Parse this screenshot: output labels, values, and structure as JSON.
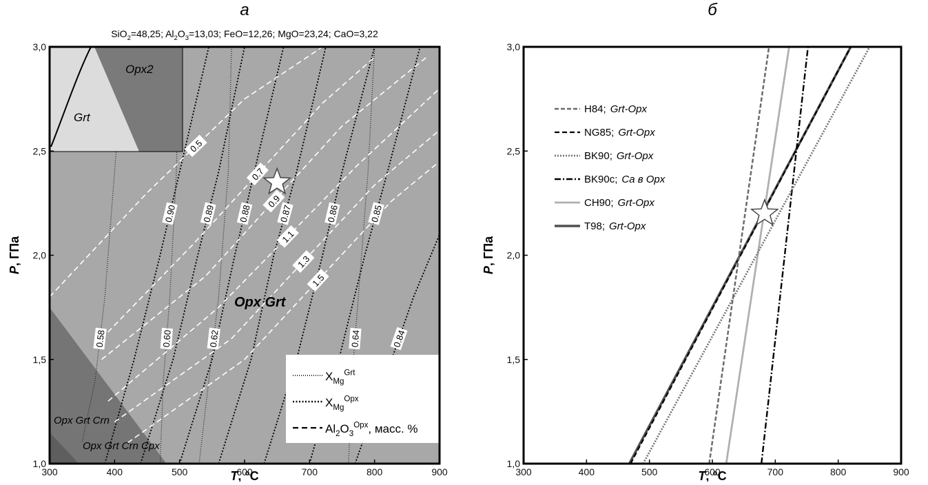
{
  "chart_data": [
    {
      "type": "contour",
      "title": "а",
      "subtitle_parts": [
        {
          "t": "SiO"
        },
        {
          "sub": "2"
        },
        {
          "t": "=48,25; Al"
        },
        {
          "sub": "2"
        },
        {
          "t": "O"
        },
        {
          "sub": "3"
        },
        {
          "t": "=13,03; FeO=12,26; MgO=23,24; CaO=3,22"
        }
      ],
      "x_label": "T",
      "x_label_unit": ", °C",
      "y_label": "P",
      "y_label_unit": ", ГПа",
      "xlim": [
        300,
        900
      ],
      "ylim": [
        1.0,
        3.0
      ],
      "xticks": [
        300,
        400,
        500,
        600,
        700,
        800,
        900
      ],
      "yticks": [
        {
          "value": 1.0,
          "label": "1,0"
        },
        {
          "value": 1.5,
          "label": "1,5"
        },
        {
          "value": 2.0,
          "label": "2,0"
        },
        {
          "value": 2.5,
          "label": "2,5"
        },
        {
          "value": 3.0,
          "label": "3,0"
        }
      ],
      "fields": [
        {
          "name": "Opx Grt",
          "color": "#a8a8a8",
          "x": [
            300,
            900,
            900,
            480,
            300
          ],
          "y": [
            3.0,
            3.0,
            1.0,
            1.0,
            1.75
          ]
        },
        {
          "name": "Opx Grt Crn",
          "color": "#757575",
          "x": [
            300,
            480,
            300
          ],
          "y": [
            1.75,
            1.0,
            1.0
          ]
        },
        {
          "name": "Opx Grt Crn Cpx",
          "color": "#5e5e5e",
          "x": [
            300,
            345,
            300
          ],
          "y": [
            1.15,
            1.0,
            1.0
          ]
        }
      ],
      "inset": {
        "labels": [
          "Grt",
          "Opx2"
        ]
      },
      "groups": [
        {
          "legend": [
            {
              "t": "X"
            },
            {
              "sub": "Mg"
            },
            {
              "sup": "Grt"
            }
          ],
          "color": "#2a2a2a",
          "legend_color": "#2a2a2a",
          "dash": "1 2",
          "width": 1.3,
          "contours": [
            {
              "name": "0.58",
              "x": [
                415,
                400,
                385,
                370,
                350
              ],
              "y": [
                3.0,
                2.4,
                1.8,
                1.4,
                1.1
              ]
            },
            {
              "name": "0.60",
              "x": [
                500,
                495,
                485,
                475,
                470
              ],
              "y": [
                3.0,
                2.4,
                1.8,
                1.4,
                1.0
              ]
            },
            {
              "name": "0.62",
              "x": [
                580,
                575,
                560,
                545,
                530
              ],
              "y": [
                3.0,
                2.4,
                1.8,
                1.4,
                1.0
              ]
            },
            {
              "name": "0.64",
              "x": [
                800,
                790,
                775,
                765,
                760
              ],
              "y": [
                3.0,
                2.4,
                1.8,
                1.4,
                1.0
              ]
            }
          ]
        },
        {
          "legend": [
            {
              "t": "X"
            },
            {
              "sub": "Mg"
            },
            {
              "sup": "Opx"
            }
          ],
          "color": "#000000",
          "legend_color": "#000000",
          "dash": "2 2.5",
          "width": 1.9,
          "contours": [
            {
              "name": "0.90",
              "x": [
                385,
                430,
                470,
                500,
                545
              ],
              "y": [
                1.0,
                1.5,
                2.0,
                2.4,
                3.0
              ]
            },
            {
              "name": "0.89",
              "x": [
                440,
                490,
                528,
                560,
                600
              ],
              "y": [
                1.0,
                1.5,
                2.0,
                2.4,
                3.0
              ]
            },
            {
              "name": "0.88",
              "x": [
                500,
                550,
                585,
                615,
                660
              ],
              "y": [
                1.0,
                1.5,
                2.0,
                2.4,
                3.0
              ]
            },
            {
              "name": "0.87",
              "x": [
                560,
                610,
                645,
                680,
                725
              ],
              "y": [
                1.0,
                1.5,
                2.0,
                2.4,
                3.0
              ]
            },
            {
              "name": "0.86",
              "x": [
                630,
                680,
                720,
                750,
                800
              ],
              "y": [
                1.0,
                1.5,
                2.0,
                2.4,
                3.0
              ]
            },
            {
              "name": "0.85",
              "x": [
                700,
                745,
                785,
                820,
                870
              ],
              "y": [
                1.0,
                1.5,
                2.0,
                2.4,
                3.0
              ]
            },
            {
              "name": "0.84",
              "x": [
                770,
                815,
                860,
                900
              ],
              "y": [
                1.0,
                1.4,
                1.8,
                2.1
              ]
            }
          ]
        },
        {
          "legend": [
            {
              "t": "Al"
            },
            {
              "sub": "2"
            },
            {
              "t": "O"
            },
            {
              "sub": "3"
            },
            {
              "sup": "Opx"
            },
            {
              "t": ", масс. %"
            }
          ],
          "color": "#ffffff",
          "legend_color": "#000000",
          "dash": "8 5",
          "width": 1.6,
          "contours": [
            {
              "name": "0.5",
              "x": [
                300,
                450,
                600,
                720
              ],
              "y": [
                1.8,
                2.3,
                2.75,
                3.0
              ]
            },
            {
              "name": "0.7",
              "x": [
                380,
                520,
                720,
                800
              ],
              "y": [
                1.6,
                2.05,
                2.73,
                2.95
              ]
            },
            {
              "name": "0.9",
              "x": [
                380,
                540,
                750,
                880
              ],
              "y": [
                1.5,
                1.9,
                2.62,
                2.95
              ]
            },
            {
              "name": "1.1",
              "x": [
                390,
                560,
                773,
                900
              ],
              "y": [
                1.3,
                1.75,
                2.43,
                2.8
              ]
            },
            {
              "name": "1.3",
              "x": [
                400,
                580,
                801,
                900
              ],
              "y": [
                1.2,
                1.6,
                2.34,
                2.6
              ]
            },
            {
              "name": "1.5",
              "x": [
                420,
                600,
                826,
                900
              ],
              "y": [
                1.1,
                1.5,
                2.26,
                2.45
              ]
            }
          ]
        }
      ],
      "star": {
        "x": 650,
        "y": 2.35
      }
    },
    {
      "type": "line",
      "title": "б",
      "x_label": "T",
      "x_label_unit": ", °C",
      "y_label": "P",
      "y_label_unit": ", ГПа",
      "xlim": [
        300,
        900
      ],
      "ylim": [
        1.0,
        3.0
      ],
      "xticks": [
        300,
        400,
        500,
        600,
        700,
        800,
        900
      ],
      "yticks": [
        {
          "value": 1.0,
          "label": "1,0"
        },
        {
          "value": 1.5,
          "label": "1,5"
        },
        {
          "value": 2.0,
          "label": "2,0"
        },
        {
          "value": 2.5,
          "label": "2,5"
        },
        {
          "value": 3.0,
          "label": "3,0"
        }
      ],
      "series": [
        {
          "name": "H84;",
          "phase": "Grt-Opx",
          "color": "#6a6a6a",
          "dash": "6 3",
          "width": 2.5,
          "x": [
            595,
            690
          ],
          "y": [
            1.0,
            3.0
          ]
        },
        {
          "name": "NG85;",
          "phase": "Grt-Opx",
          "color": "#000000",
          "dash": "7 4",
          "width": 2.2,
          "x": [
            470,
            820
          ],
          "y": [
            1.0,
            3.0
          ]
        },
        {
          "name": "BK90;",
          "phase": "Grt-Opx",
          "color": "#777777",
          "dash": "2 2",
          "width": 2.8,
          "x": [
            490,
            850
          ],
          "y": [
            1.0,
            3.0
          ]
        },
        {
          "name": "BK90c;",
          "phase": "Ca в Opx",
          "color": "#000000",
          "dash": "9 3 2 3",
          "width": 2.4,
          "x": [
            678,
            752
          ],
          "y": [
            1.0,
            3.0
          ]
        },
        {
          "name": "CH90;",
          "phase": "Grt-Opx",
          "color": "#b0b0b0",
          "dash": "",
          "width": 2.8,
          "x": [
            622,
            722
          ],
          "y": [
            1.0,
            3.0
          ]
        },
        {
          "name": "T98;",
          "phase": "Grt-Opx",
          "color": "#505050",
          "dash": "",
          "width": 3.4,
          "x": [
            468,
            820
          ],
          "y": [
            1.0,
            3.0
          ]
        }
      ],
      "star": {
        "x": 683,
        "y": 2.2
      }
    }
  ]
}
